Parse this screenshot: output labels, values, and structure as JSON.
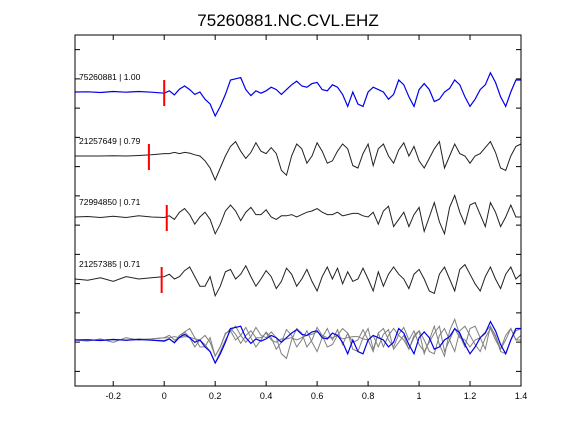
{
  "chart_data": {
    "type": "line",
    "title": "75260881.NC.CVL.EHZ",
    "xlabel": "",
    "ylabel": "",
    "xlim": [
      -0.35,
      1.4
    ],
    "x_ticks": [
      -0.2,
      0,
      0.2,
      0.4,
      0.6,
      0.8,
      1,
      1.2,
      1.4
    ],
    "x_tick_labels": [
      "-0.2",
      "0",
      "0.2",
      "0.4",
      "0.6",
      "0.8",
      "1",
      "1.2",
      "1.4"
    ],
    "grid": false,
    "colors": {
      "reference": "#0000ee",
      "other": "#222222",
      "stack_other": "#808080",
      "pick": "#ff0000",
      "axes": "#000000"
    },
    "series": [
      {
        "name": "75260881 | 1.00",
        "color": "#0000ee",
        "pick_time": 0.0,
        "x": [
          -0.35,
          -0.3,
          -0.25,
          -0.2,
          -0.15,
          -0.1,
          -0.05,
          0.0,
          0.02,
          0.04,
          0.06,
          0.08,
          0.1,
          0.12,
          0.14,
          0.16,
          0.18,
          0.2,
          0.22,
          0.24,
          0.26,
          0.28,
          0.3,
          0.32,
          0.34,
          0.36,
          0.38,
          0.4,
          0.42,
          0.44,
          0.46,
          0.48,
          0.5,
          0.52,
          0.54,
          0.56,
          0.58,
          0.6,
          0.62,
          0.64,
          0.66,
          0.68,
          0.7,
          0.72,
          0.74,
          0.76,
          0.78,
          0.8,
          0.82,
          0.84,
          0.86,
          0.88,
          0.9,
          0.92,
          0.94,
          0.96,
          0.98,
          1.0,
          1.02,
          1.04,
          1.06,
          1.08,
          1.1,
          1.12,
          1.14,
          1.16,
          1.18,
          1.2,
          1.22,
          1.24,
          1.26,
          1.28,
          1.3,
          1.32,
          1.34,
          1.36,
          1.38,
          1.4
        ],
        "y": [
          0.0,
          0.01,
          -0.02,
          0.02,
          -0.01,
          0.02,
          -0.01,
          -0.05,
          0.05,
          -0.12,
          0.12,
          0.25,
          0.1,
          -0.1,
          0.0,
          -0.3,
          -0.5,
          -1.0,
          -0.6,
          -0.1,
          0.5,
          0.55,
          0.6,
          0.1,
          -0.15,
          0.05,
          -0.05,
          0.05,
          0.2,
          0.1,
          -0.1,
          0.1,
          0.3,
          0.45,
          0.25,
          0.2,
          0.35,
          0.4,
          0.1,
          0.05,
          0.3,
          0.2,
          -0.1,
          -0.6,
          0.0,
          -0.5,
          -0.6,
          0.0,
          0.2,
          0.1,
          0.0,
          -0.3,
          -0.1,
          0.5,
          0.3,
          -0.2,
          -0.6,
          0.1,
          0.35,
          0.1,
          -0.4,
          -0.3,
          0.0,
          0.15,
          0.5,
          0.3,
          -0.2,
          -0.6,
          -0.3,
          0.1,
          0.3,
          0.8,
          0.4,
          -0.2,
          -0.6,
          0.0,
          0.5,
          0.5
        ]
      },
      {
        "name": "21257649 | 0.79",
        "color": "#222222",
        "pick_time": -0.06,
        "x": [
          -0.35,
          -0.3,
          -0.25,
          -0.2,
          -0.15,
          -0.1,
          -0.05,
          0.0,
          0.02,
          0.04,
          0.06,
          0.08,
          0.1,
          0.12,
          0.14,
          0.16,
          0.18,
          0.2,
          0.22,
          0.24,
          0.26,
          0.28,
          0.3,
          0.32,
          0.34,
          0.36,
          0.38,
          0.4,
          0.42,
          0.44,
          0.46,
          0.48,
          0.5,
          0.52,
          0.54,
          0.56,
          0.58,
          0.6,
          0.62,
          0.64,
          0.66,
          0.68,
          0.7,
          0.72,
          0.74,
          0.76,
          0.78,
          0.8,
          0.82,
          0.84,
          0.86,
          0.88,
          0.9,
          0.92,
          0.94,
          0.96,
          0.98,
          1.0,
          1.02,
          1.04,
          1.06,
          1.08,
          1.1,
          1.12,
          1.14,
          1.16,
          1.18,
          1.2,
          1.22,
          1.24,
          1.26,
          1.28,
          1.3,
          1.32,
          1.34,
          1.36,
          1.38,
          1.4
        ],
        "y": [
          0.0,
          0.0,
          0.0,
          0.01,
          0.0,
          0.02,
          0.05,
          0.1,
          0.1,
          0.15,
          0.1,
          0.15,
          0.12,
          0.05,
          0.0,
          -0.2,
          -0.5,
          -1.0,
          -0.5,
          0.0,
          0.4,
          0.6,
          0.2,
          -0.1,
          0.15,
          0.55,
          0.2,
          0.1,
          0.35,
          0.1,
          -0.6,
          -0.8,
          0.0,
          0.5,
          0.3,
          -0.3,
          0.0,
          0.55,
          0.2,
          -0.3,
          -0.2,
          0.2,
          0.5,
          0.3,
          -0.4,
          -0.5,
          0.1,
          0.5,
          -0.4,
          0.3,
          0.5,
          0.0,
          -0.3,
          0.25,
          0.55,
          0.0,
          0.4,
          -0.2,
          -0.5,
          -0.1,
          0.3,
          0.6,
          -0.5,
          0.0,
          0.5,
          0.1,
          0.0,
          -0.3,
          0.0,
          0.1,
          0.35,
          0.6,
          0.15,
          -0.5,
          -0.6,
          0.0,
          0.4,
          0.5
        ]
      },
      {
        "name": "72994850 | 0.71",
        "color": "#222222",
        "pick_time": 0.01,
        "x": [
          -0.35,
          -0.3,
          -0.25,
          -0.2,
          -0.15,
          -0.1,
          -0.05,
          0.0,
          0.02,
          0.04,
          0.06,
          0.08,
          0.1,
          0.12,
          0.14,
          0.16,
          0.18,
          0.2,
          0.22,
          0.24,
          0.26,
          0.28,
          0.3,
          0.32,
          0.34,
          0.36,
          0.38,
          0.4,
          0.42,
          0.44,
          0.46,
          0.48,
          0.5,
          0.52,
          0.54,
          0.56,
          0.58,
          0.6,
          0.62,
          0.64,
          0.66,
          0.68,
          0.7,
          0.72,
          0.74,
          0.76,
          0.78,
          0.8,
          0.82,
          0.84,
          0.86,
          0.88,
          0.9,
          0.92,
          0.94,
          0.96,
          0.98,
          1.0,
          1.02,
          1.04,
          1.06,
          1.08,
          1.1,
          1.12,
          1.14,
          1.16,
          1.18,
          1.2,
          1.22,
          1.24,
          1.26,
          1.28,
          1.3,
          1.32,
          1.34,
          1.36,
          1.38,
          1.4
        ],
        "y": [
          0.0,
          0.02,
          -0.02,
          0.03,
          -0.02,
          0.05,
          0.0,
          -0.02,
          0.05,
          -0.1,
          0.2,
          0.35,
          0.1,
          -0.3,
          0.0,
          0.2,
          -0.1,
          -0.7,
          -0.3,
          0.25,
          0.5,
          0.25,
          -0.15,
          0.2,
          0.4,
          0.1,
          0.1,
          0.3,
          0.0,
          -0.1,
          0.05,
          0.05,
          0.1,
          0.0,
          0.1,
          0.2,
          0.25,
          0.35,
          0.2,
          0.1,
          0.1,
          0.2,
          0.05,
          0.1,
          0.15,
          0.15,
          0.05,
          0.0,
          0.2,
          -0.3,
          0.25,
          0.45,
          -0.4,
          -0.1,
          0.2,
          -0.4,
          0.1,
          0.4,
          -0.6,
          0.0,
          0.6,
          -0.2,
          -0.7,
          0.4,
          0.9,
          0.2,
          -0.3,
          0.5,
          0.6,
          0.1,
          -0.4,
          0.6,
          0.2,
          -0.4,
          0.0,
          0.5,
          0.0,
          0.0
        ]
      },
      {
        "name": "21257385 | 0.71",
        "color": "#222222",
        "pick_time": -0.01,
        "x": [
          -0.35,
          -0.3,
          -0.25,
          -0.2,
          -0.15,
          -0.1,
          -0.05,
          0.0,
          0.02,
          0.04,
          0.06,
          0.08,
          0.1,
          0.12,
          0.14,
          0.16,
          0.18,
          0.2,
          0.22,
          0.24,
          0.26,
          0.28,
          0.3,
          0.32,
          0.34,
          0.36,
          0.38,
          0.4,
          0.42,
          0.44,
          0.46,
          0.48,
          0.5,
          0.52,
          0.54,
          0.56,
          0.58,
          0.6,
          0.62,
          0.64,
          0.66,
          0.68,
          0.7,
          0.72,
          0.74,
          0.76,
          0.78,
          0.8,
          0.82,
          0.84,
          0.86,
          0.88,
          0.9,
          0.92,
          0.94,
          0.96,
          0.98,
          1.0,
          1.02,
          1.04,
          1.06,
          1.08,
          1.1,
          1.12,
          1.14,
          1.16,
          1.18,
          1.2,
          1.22,
          1.24,
          1.26,
          1.28,
          1.3,
          1.32,
          1.34,
          1.36,
          1.38,
          1.4
        ],
        "y": [
          0.0,
          -0.05,
          0.05,
          -0.1,
          0.1,
          0.0,
          0.05,
          0.1,
          0.2,
          0.0,
          0.1,
          0.35,
          0.5,
          0.1,
          -0.3,
          -0.3,
          0.1,
          -0.7,
          -0.3,
          0.3,
          0.4,
          0.0,
          0.2,
          0.55,
          0.1,
          -0.3,
          0.0,
          0.35,
          0.1,
          -0.4,
          -0.1,
          0.45,
          0.2,
          -0.3,
          0.0,
          0.4,
          -0.1,
          -0.5,
          0.1,
          0.5,
          0.0,
          0.45,
          -0.2,
          0.3,
          -0.1,
          0.0,
          0.45,
          0.0,
          -0.5,
          0.3,
          -0.3,
          0.2,
          0.5,
          0.2,
          0.0,
          -0.4,
          0.2,
          0.4,
          0.0,
          -0.5,
          -0.6,
          0.2,
          0.5,
          0.0,
          -0.5,
          0.4,
          0.6,
          0.2,
          -0.2,
          -0.5,
          0.1,
          0.5,
          0.0,
          -0.4,
          0.2,
          0.5,
          0.0,
          0.2
        ]
      }
    ]
  }
}
